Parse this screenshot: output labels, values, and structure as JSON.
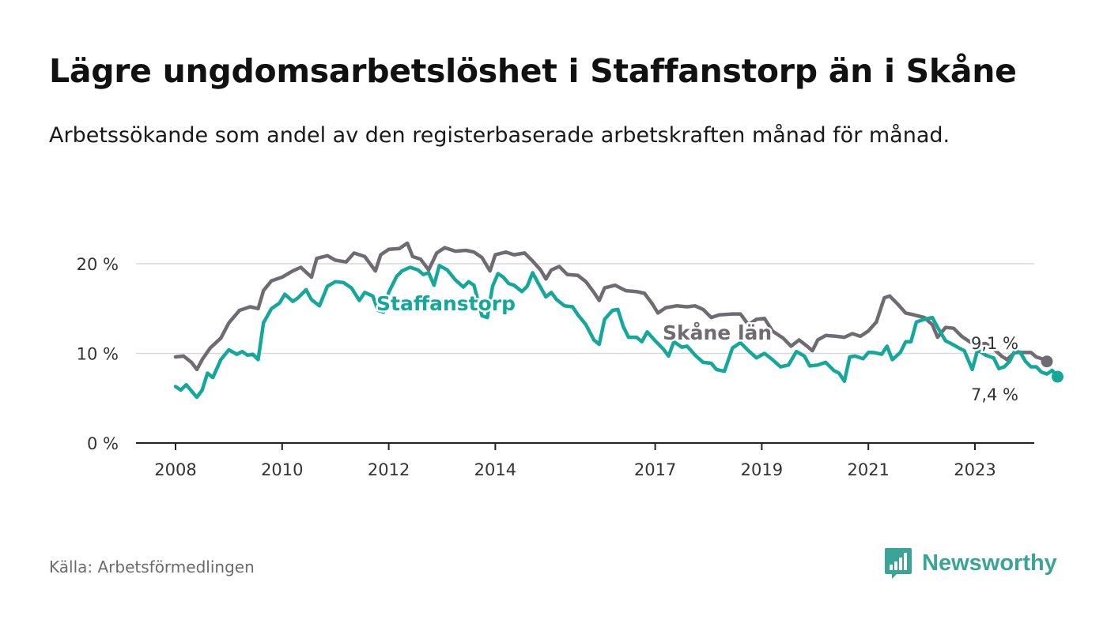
{
  "header": {
    "title": "Lägre ungdomsarbetslöshet i Staffanstorp än i Skåne",
    "subtitle": "Arbetssökande som andel av den registerbaserade arbetskraften månad för månad."
  },
  "footer": {
    "source": "Källa: Arbetsförmedlingen",
    "brand": "Newsworthy"
  },
  "colors": {
    "skane": "#6e6b72",
    "staffanstorp": "#15a89a",
    "grid": "#d9d9d9",
    "axis": "#222222",
    "brand": "#3aa496"
  },
  "icons": {
    "brand_logo": "bar-chart-icon"
  },
  "chart_data": {
    "type": "line",
    "title": "Lägre ungdomsarbetslöshet i Staffanstorp än i Skåne",
    "xlabel": "",
    "ylabel": "",
    "xlim": [
      2007.75,
      2024.5
    ],
    "ylim": [
      0,
      22
    ],
    "grid": true,
    "yticks": [
      {
        "value": 0,
        "label": "0 %"
      },
      {
        "value": 10,
        "label": "10 %"
      },
      {
        "value": 20,
        "label": "20 %"
      }
    ],
    "xticks": [
      {
        "value": 2008,
        "label": "2008"
      },
      {
        "value": 2010,
        "label": "2010"
      },
      {
        "value": 2012,
        "label": "2012"
      },
      {
        "value": 2014,
        "label": "2014"
      },
      {
        "value": 2017,
        "label": "2017"
      },
      {
        "value": 2019,
        "label": "2019"
      },
      {
        "value": 2021,
        "label": "2021"
      },
      {
        "value": 2023,
        "label": "2023"
      }
    ],
    "series": [
      {
        "name": "Skåne län",
        "color": "#6e6b72",
        "label": "Skåne län",
        "end_label": "9,1 %",
        "points": [
          [
            2008.0,
            9.6
          ],
          [
            2008.15,
            9.7
          ],
          [
            2008.3,
            9.0
          ],
          [
            2008.4,
            8.2
          ],
          [
            2008.5,
            9.3
          ],
          [
            2008.65,
            10.6
          ],
          [
            2008.85,
            11.7
          ],
          [
            2009.0,
            13.4
          ],
          [
            2009.2,
            14.8
          ],
          [
            2009.4,
            15.2
          ],
          [
            2009.55,
            15.0
          ],
          [
            2009.65,
            17.0
          ],
          [
            2009.8,
            18.1
          ],
          [
            2010.0,
            18.5
          ],
          [
            2010.2,
            19.2
          ],
          [
            2010.35,
            19.6
          ],
          [
            2010.55,
            18.5
          ],
          [
            2010.65,
            20.6
          ],
          [
            2010.85,
            20.9
          ],
          [
            2011.0,
            20.4
          ],
          [
            2011.2,
            20.2
          ],
          [
            2011.35,
            21.2
          ],
          [
            2011.55,
            20.8
          ],
          [
            2011.75,
            19.2
          ],
          [
            2011.85,
            21.0
          ],
          [
            2012.0,
            21.6
          ],
          [
            2012.2,
            21.7
          ],
          [
            2012.35,
            22.3
          ],
          [
            2012.45,
            20.8
          ],
          [
            2012.6,
            20.5
          ],
          [
            2012.75,
            19.3
          ],
          [
            2012.9,
            21.2
          ],
          [
            2013.05,
            21.8
          ],
          [
            2013.25,
            21.4
          ],
          [
            2013.45,
            21.5
          ],
          [
            2013.6,
            21.3
          ],
          [
            2013.75,
            20.7
          ],
          [
            2013.9,
            19.2
          ],
          [
            2014.0,
            21.0
          ],
          [
            2014.2,
            21.3
          ],
          [
            2014.35,
            21.0
          ],
          [
            2014.55,
            21.2
          ],
          [
            2014.7,
            20.3
          ],
          [
            2014.85,
            19.3
          ],
          [
            2014.95,
            18.3
          ],
          [
            2015.05,
            19.3
          ],
          [
            2015.2,
            19.7
          ],
          [
            2015.35,
            18.8
          ],
          [
            2015.55,
            18.7
          ],
          [
            2015.7,
            18.0
          ],
          [
            2015.85,
            16.8
          ],
          [
            2015.95,
            15.9
          ],
          [
            2016.05,
            17.3
          ],
          [
            2016.25,
            17.6
          ],
          [
            2016.45,
            17.0
          ],
          [
            2016.65,
            16.9
          ],
          [
            2016.8,
            16.7
          ],
          [
            2016.95,
            15.5
          ],
          [
            2017.05,
            14.5
          ],
          [
            2017.2,
            15.1
          ],
          [
            2017.4,
            15.3
          ],
          [
            2017.6,
            15.2
          ],
          [
            2017.75,
            15.3
          ],
          [
            2017.9,
            14.9
          ],
          [
            2018.05,
            14.0
          ],
          [
            2018.2,
            14.3
          ],
          [
            2018.45,
            14.4
          ],
          [
            2018.6,
            14.4
          ],
          [
            2018.75,
            13.2
          ],
          [
            2018.9,
            13.8
          ],
          [
            2019.05,
            13.9
          ],
          [
            2019.2,
            12.5
          ],
          [
            2019.4,
            11.7
          ],
          [
            2019.55,
            10.8
          ],
          [
            2019.7,
            11.5
          ],
          [
            2019.85,
            10.8
          ],
          [
            2019.95,
            10.3
          ],
          [
            2020.05,
            11.5
          ],
          [
            2020.2,
            12.0
          ],
          [
            2020.4,
            11.9
          ],
          [
            2020.55,
            11.8
          ],
          [
            2020.7,
            12.2
          ],
          [
            2020.85,
            11.9
          ],
          [
            2021.0,
            12.5
          ],
          [
            2021.15,
            13.5
          ],
          [
            2021.3,
            16.2
          ],
          [
            2021.4,
            16.4
          ],
          [
            2021.55,
            15.5
          ],
          [
            2021.7,
            14.5
          ],
          [
            2021.85,
            14.3
          ],
          [
            2022.05,
            14.0
          ],
          [
            2022.2,
            13.2
          ],
          [
            2022.3,
            11.8
          ],
          [
            2022.45,
            12.9
          ],
          [
            2022.6,
            12.8
          ],
          [
            2022.75,
            11.9
          ],
          [
            2022.9,
            11.3
          ],
          [
            2023.05,
            11.0
          ],
          [
            2023.2,
            11.1
          ],
          [
            2023.35,
            10.5
          ],
          [
            2023.5,
            9.7
          ],
          [
            2023.6,
            9.3
          ],
          [
            2023.75,
            10.1
          ],
          [
            2023.9,
            10.1
          ],
          [
            2024.05,
            10.1
          ],
          [
            2024.15,
            9.6
          ],
          [
            2024.25,
            9.4
          ],
          [
            2024.35,
            9.1
          ]
        ]
      },
      {
        "name": "Staffanstorp",
        "color": "#15a89a",
        "label": "Staffanstorp",
        "end_label": "7,4 %",
        "points": [
          [
            2008.0,
            6.3
          ],
          [
            2008.1,
            5.9
          ],
          [
            2008.2,
            6.5
          ],
          [
            2008.3,
            5.8
          ],
          [
            2008.4,
            5.1
          ],
          [
            2008.5,
            5.9
          ],
          [
            2008.6,
            7.8
          ],
          [
            2008.7,
            7.3
          ],
          [
            2008.85,
            9.3
          ],
          [
            2009.0,
            10.4
          ],
          [
            2009.15,
            9.9
          ],
          [
            2009.25,
            10.2
          ],
          [
            2009.35,
            9.8
          ],
          [
            2009.45,
            9.9
          ],
          [
            2009.55,
            9.3
          ],
          [
            2009.65,
            13.4
          ],
          [
            2009.8,
            15.0
          ],
          [
            2009.95,
            15.6
          ],
          [
            2010.05,
            16.6
          ],
          [
            2010.2,
            15.8
          ],
          [
            2010.3,
            16.2
          ],
          [
            2010.45,
            17.1
          ],
          [
            2010.55,
            16.0
          ],
          [
            2010.7,
            15.3
          ],
          [
            2010.85,
            17.5
          ],
          [
            2011.0,
            18.0
          ],
          [
            2011.15,
            17.9
          ],
          [
            2011.3,
            17.3
          ],
          [
            2011.45,
            15.9
          ],
          [
            2011.55,
            16.8
          ],
          [
            2011.7,
            16.4
          ],
          [
            2011.8,
            14.8
          ],
          [
            2011.9,
            14.6
          ],
          [
            2012.0,
            16.8
          ],
          [
            2012.15,
            18.6
          ],
          [
            2012.25,
            19.2
          ],
          [
            2012.4,
            19.6
          ],
          [
            2012.55,
            19.3
          ],
          [
            2012.65,
            18.8
          ],
          [
            2012.75,
            19.0
          ],
          [
            2012.85,
            17.6
          ],
          [
            2012.95,
            19.8
          ],
          [
            2013.1,
            19.3
          ],
          [
            2013.25,
            18.2
          ],
          [
            2013.4,
            17.4
          ],
          [
            2013.5,
            18.0
          ],
          [
            2013.6,
            17.6
          ],
          [
            2013.75,
            14.2
          ],
          [
            2013.85,
            14.0
          ],
          [
            2013.95,
            17.5
          ],
          [
            2014.05,
            18.9
          ],
          [
            2014.15,
            18.5
          ],
          [
            2014.25,
            17.8
          ],
          [
            2014.35,
            17.6
          ],
          [
            2014.5,
            16.9
          ],
          [
            2014.6,
            17.5
          ],
          [
            2014.7,
            19.0
          ],
          [
            2014.8,
            17.9
          ],
          [
            2014.95,
            16.3
          ],
          [
            2015.05,
            16.8
          ],
          [
            2015.15,
            16.0
          ],
          [
            2015.3,
            15.3
          ],
          [
            2015.45,
            15.2
          ],
          [
            2015.55,
            14.3
          ],
          [
            2015.7,
            13.2
          ],
          [
            2015.85,
            11.5
          ],
          [
            2015.95,
            11.0
          ],
          [
            2016.05,
            13.8
          ],
          [
            2016.2,
            14.8
          ],
          [
            2016.3,
            14.9
          ],
          [
            2016.4,
            13.0
          ],
          [
            2016.5,
            11.8
          ],
          [
            2016.65,
            11.8
          ],
          [
            2016.75,
            11.3
          ],
          [
            2016.85,
            12.4
          ],
          [
            2017.0,
            11.4
          ],
          [
            2017.15,
            10.5
          ],
          [
            2017.25,
            9.7
          ],
          [
            2017.35,
            11.3
          ],
          [
            2017.5,
            10.7
          ],
          [
            2017.6,
            10.8
          ],
          [
            2017.75,
            9.8
          ],
          [
            2017.9,
            9.0
          ],
          [
            2018.05,
            8.9
          ],
          [
            2018.15,
            8.2
          ],
          [
            2018.3,
            8.0
          ],
          [
            2018.45,
            10.6
          ],
          [
            2018.6,
            11.2
          ],
          [
            2018.75,
            10.3
          ],
          [
            2018.9,
            9.5
          ],
          [
            2019.05,
            10.0
          ],
          [
            2019.2,
            9.3
          ],
          [
            2019.35,
            8.5
          ],
          [
            2019.5,
            8.7
          ],
          [
            2019.65,
            10.2
          ],
          [
            2019.8,
            9.7
          ],
          [
            2019.9,
            8.6
          ],
          [
            2020.05,
            8.7
          ],
          [
            2020.2,
            9.0
          ],
          [
            2020.35,
            8.1
          ],
          [
            2020.45,
            7.8
          ],
          [
            2020.55,
            6.9
          ],
          [
            2020.65,
            9.6
          ],
          [
            2020.75,
            9.7
          ],
          [
            2020.9,
            9.4
          ],
          [
            2021.0,
            10.1
          ],
          [
            2021.1,
            10.1
          ],
          [
            2021.25,
            9.9
          ],
          [
            2021.35,
            10.8
          ],
          [
            2021.45,
            9.3
          ],
          [
            2021.6,
            10.1
          ],
          [
            2021.7,
            11.3
          ],
          [
            2021.8,
            11.3
          ],
          [
            2021.9,
            13.5
          ],
          [
            2022.05,
            13.8
          ],
          [
            2022.2,
            14.0
          ],
          [
            2022.3,
            12.9
          ],
          [
            2022.45,
            11.4
          ],
          [
            2022.55,
            11.1
          ],
          [
            2022.7,
            10.6
          ],
          [
            2022.8,
            10.3
          ],
          [
            2022.95,
            8.2
          ],
          [
            2023.05,
            10.4
          ],
          [
            2023.2,
            9.8
          ],
          [
            2023.35,
            9.5
          ],
          [
            2023.45,
            8.3
          ],
          [
            2023.55,
            8.5
          ],
          [
            2023.65,
            9.1
          ],
          [
            2023.75,
            10.3
          ],
          [
            2023.85,
            10.1
          ],
          [
            2023.95,
            9.1
          ],
          [
            2024.05,
            8.5
          ],
          [
            2024.15,
            8.5
          ],
          [
            2024.25,
            7.9
          ],
          [
            2024.35,
            7.7
          ],
          [
            2024.45,
            8.1
          ],
          [
            2024.55,
            7.4
          ]
        ]
      }
    ]
  }
}
